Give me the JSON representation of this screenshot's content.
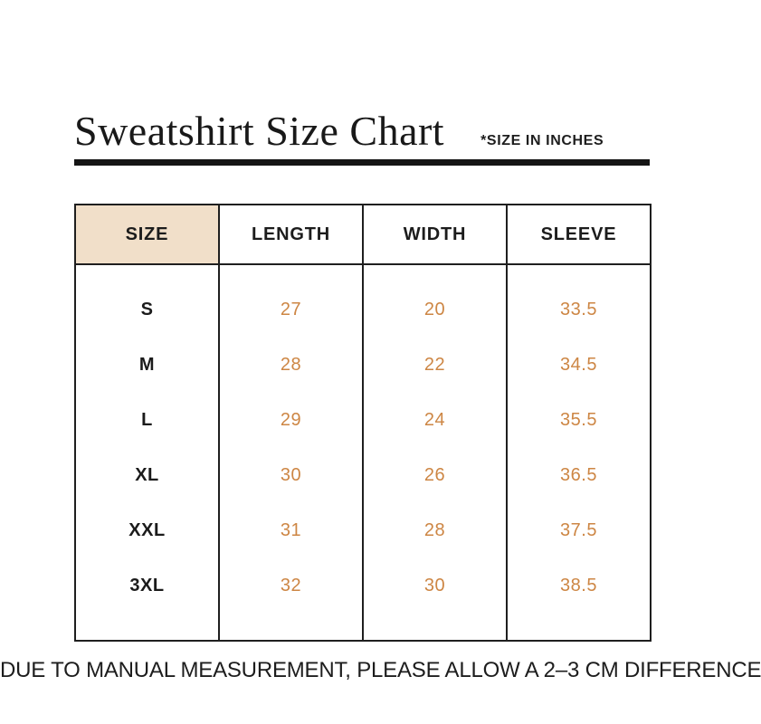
{
  "title": "Sweatshirt Size Chart",
  "title_note": "*SIZE IN INCHES",
  "table": {
    "columns": [
      "SIZE",
      "LENGTH",
      "WIDTH",
      "SLEEVE"
    ],
    "rows": [
      {
        "size": "S",
        "length": "27",
        "width": "20",
        "sleeve": "33.5"
      },
      {
        "size": "M",
        "length": "28",
        "width": "22",
        "sleeve": "34.5"
      },
      {
        "size": "L",
        "length": "29",
        "width": "24",
        "sleeve": "35.5"
      },
      {
        "size": "XL",
        "length": "30",
        "width": "26",
        "sleeve": "36.5"
      },
      {
        "size": "XXL",
        "length": "31",
        "width": "28",
        "sleeve": "37.5"
      },
      {
        "size": "3XL",
        "length": "32",
        "width": "30",
        "sleeve": "38.5"
      }
    ]
  },
  "footer_note": "DUE TO MANUAL MEASUREMENT, PLEASE ALLOW A 2–3 CM DIFFERENCE",
  "colors": {
    "background": "#ffffff",
    "text": "#1a1a1a",
    "border": "#1f1f1f",
    "header_cell_bg": "#f1dfc9",
    "value_text": "#cd8644",
    "underline_bar": "#151515"
  }
}
